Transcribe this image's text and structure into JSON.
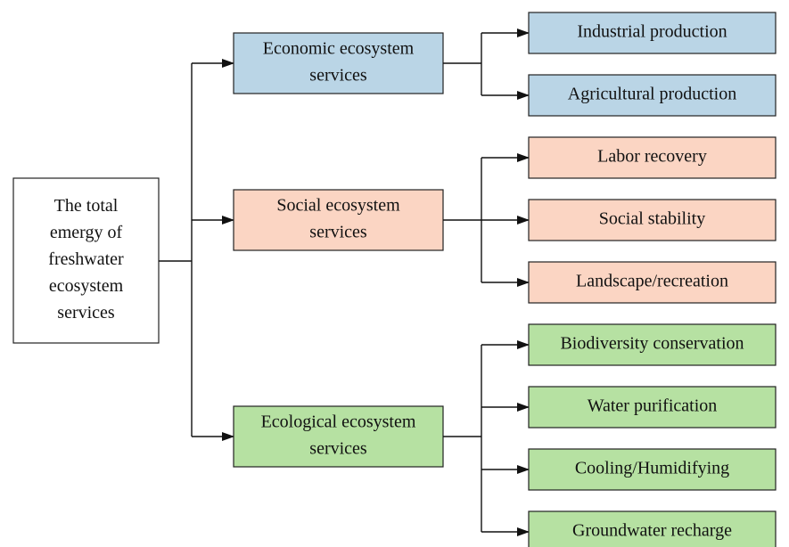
{
  "root": {
    "lines": [
      "The total",
      "emergy of",
      "freshwater",
      "ecosystem",
      "services"
    ]
  },
  "categories": [
    {
      "lines": [
        "Economic ecosystem",
        "services"
      ],
      "color": "#bad5e6",
      "children": [
        "Industrial production",
        "Agricultural production"
      ]
    },
    {
      "lines": [
        "Social ecosystem",
        "services"
      ],
      "color": "#fbd5c3",
      "children": [
        "Labor recovery",
        "Social stability",
        "Landscape/recreation"
      ]
    },
    {
      "lines": [
        "Ecological ecosystem",
        "services"
      ],
      "color": "#b6e1a2",
      "children": [
        "Biodiversity conservation",
        "Water purification",
        "Cooling/Humidifying",
        "Groundwater recharge"
      ]
    }
  ]
}
